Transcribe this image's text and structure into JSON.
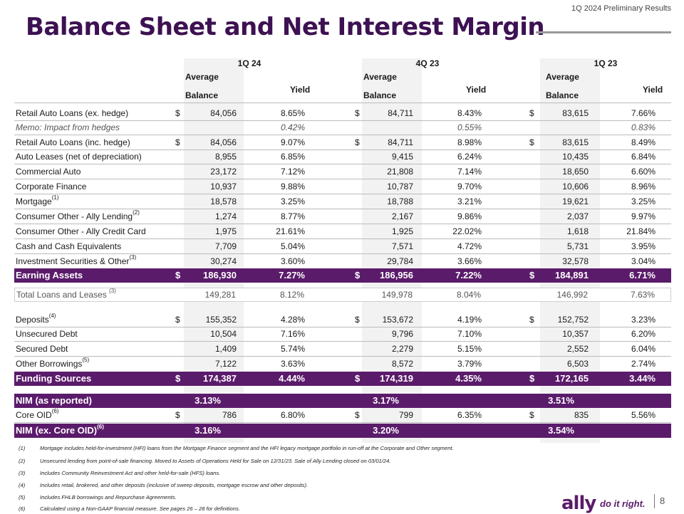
{
  "header": {
    "period": "1Q 2024 Preliminary Results",
    "title": "Balance Sheet and Net Interest Margin"
  },
  "periods": [
    {
      "label": "1Q 24",
      "avg": "Average",
      "bal": "Balance",
      "yield": "Yield"
    },
    {
      "label": "4Q 23",
      "avg": "Average",
      "bal": "Balance",
      "yield": "Yield"
    },
    {
      "label": "1Q 23",
      "avg": "Average",
      "bal": "Balance",
      "yield": "Yield"
    }
  ],
  "rows": [
    {
      "label": "Retail Auto Loans (ex. hedge)",
      "c": [
        [
          "$",
          "84,056",
          "8.65%"
        ],
        [
          "$",
          "84,711",
          "8.43%"
        ],
        [
          "$",
          "83,615",
          "7.66%"
        ]
      ]
    },
    {
      "label": "Memo: Impact from hedges",
      "c": [
        [
          "",
          "",
          "0.42%"
        ],
        [
          "",
          "",
          "0.55%"
        ],
        [
          "",
          "",
          "0.83%"
        ]
      ]
    },
    {
      "label": "Retail Auto Loans (inc. hedge)",
      "c": [
        [
          "$",
          "84,056",
          "9.07%"
        ],
        [
          "$",
          "84,711",
          "8.98%"
        ],
        [
          "$",
          "83,615",
          "8.49%"
        ]
      ]
    },
    {
      "label": "Auto Leases (net of depreciation)",
      "c": [
        [
          "",
          "8,955",
          "6.85%"
        ],
        [
          "",
          "9,415",
          "6.24%"
        ],
        [
          "",
          "10,435",
          "6.84%"
        ]
      ]
    },
    {
      "label": "Commercial Auto",
      "c": [
        [
          "",
          "23,172",
          "7.12%"
        ],
        [
          "",
          "21,808",
          "7.14%"
        ],
        [
          "",
          "18,650",
          "6.60%"
        ]
      ]
    },
    {
      "label": "Corporate Finance",
      "c": [
        [
          "",
          "10,937",
          "9.88%"
        ],
        [
          "",
          "10,787",
          "9.70%"
        ],
        [
          "",
          "10,606",
          "8.96%"
        ]
      ]
    },
    {
      "label": "Mortgage",
      "sup": "(1)",
      "c": [
        [
          "",
          "18,578",
          "3.25%"
        ],
        [
          "",
          "18,788",
          "3.21%"
        ],
        [
          "",
          "19,621",
          "3.25%"
        ]
      ]
    },
    {
      "label": "Consumer Other - Ally Lending",
      "sup": "(2)",
      "c": [
        [
          "",
          "1,274",
          "8.77%"
        ],
        [
          "",
          "2,167",
          "9.86%"
        ],
        [
          "",
          "2,037",
          "9.97%"
        ]
      ]
    },
    {
      "label": "Consumer Other - Ally Credit Card",
      "c": [
        [
          "",
          "1,975",
          "21.61%"
        ],
        [
          "",
          "1,925",
          "22.02%"
        ],
        [
          "",
          "1,618",
          "21.84%"
        ]
      ]
    },
    {
      "label": "Cash and Cash Equivalents",
      "c": [
        [
          "",
          "7,709",
          "5.04%"
        ],
        [
          "",
          "7,571",
          "4.72%"
        ],
        [
          "",
          "5,731",
          "3.95%"
        ]
      ]
    },
    {
      "label": "Investment Securities & Other",
      "sup": "(3)",
      "c": [
        [
          "",
          "30,274",
          "3.60%"
        ],
        [
          "",
          "29,784",
          "3.66%"
        ],
        [
          "",
          "32,578",
          "3.04%"
        ]
      ]
    },
    {
      "label": "Earning Assets",
      "c": [
        [
          "$",
          "186,930",
          "7.27%"
        ],
        [
          "$",
          "186,956",
          "7.22%"
        ],
        [
          "$",
          "184,891",
          "6.71%"
        ]
      ]
    },
    {
      "label": "Total Loans and Leases ",
      "sup": "(3)",
      "c": [
        [
          "",
          "149,281",
          "8.12%"
        ],
        [
          "",
          "149,978",
          "8.04%"
        ],
        [
          "",
          "146,992",
          "7.63%"
        ]
      ]
    },
    {
      "label": "Deposits",
      "sup": "(4)",
      "c": [
        [
          "$",
          "155,352",
          "4.28%"
        ],
        [
          "$",
          "153,672",
          "4.19%"
        ],
        [
          "$",
          "152,752",
          "3.23%"
        ]
      ]
    },
    {
      "label": "Unsecured Debt",
      "c": [
        [
          "",
          "10,504",
          "7.16%"
        ],
        [
          "",
          "9,796",
          "7.10%"
        ],
        [
          "",
          "10,357",
          "6.20%"
        ]
      ]
    },
    {
      "label": "Secured Debt",
      "c": [
        [
          "",
          "1,409",
          "5.74%"
        ],
        [
          "",
          "2,279",
          "5.15%"
        ],
        [
          "",
          "2,552",
          "6.04%"
        ]
      ]
    },
    {
      "label": "Other Borrowings",
      "sup": "(5)",
      "c": [
        [
          "",
          "7,122",
          "3.63%"
        ],
        [
          "",
          "8,572",
          "3.79%"
        ],
        [
          "",
          "6,503",
          "2.74%"
        ]
      ]
    },
    {
      "label": "Funding Sources",
      "c": [
        [
          "$",
          "174,387",
          "4.44%"
        ],
        [
          "$",
          "174,319",
          "4.35%"
        ],
        [
          "$",
          "172,165",
          "3.44%"
        ]
      ]
    },
    {
      "label": "NIM (as reported)",
      "c": [
        [
          "",
          "",
          "3.13%"
        ],
        [
          "",
          "",
          "3.17%"
        ],
        [
          "",
          "",
          "3.51%"
        ]
      ]
    },
    {
      "label": "Core OID",
      "sup": "(6)",
      "c": [
        [
          "$",
          "786",
          "6.80%"
        ],
        [
          "$",
          "799",
          "6.35%"
        ],
        [
          "$",
          "835",
          "5.56%"
        ]
      ]
    },
    {
      "label": "NIM (ex. Core OID)",
      "sup": "(6)",
      "c": [
        [
          "",
          "",
          "3.16%"
        ],
        [
          "",
          "",
          "3.20%"
        ],
        [
          "",
          "",
          "3.54%"
        ]
      ]
    }
  ],
  "footnotes": [
    {
      "n": "(1)",
      "t": "Mortgage includes held-for-investment (HFI) loans from the Mortgage Finance segment and the HFI legacy mortgage portfolio in run-off at the Corporate and Other segment."
    },
    {
      "n": "(2)",
      "t": "Unsecured lending from point-of-sale financing. Moved to Assets of Operations Held for Sale on 12/31/23. Sale of Ally Lending closed on 03/01/24."
    },
    {
      "n": "(3)",
      "t": "Includes Community Reinvestment Act and other held-for-sale (HFS) loans."
    },
    {
      "n": "(4)",
      "t": "Includes retail, brokered, and other deposits (inclusive of sweep deposits, mortgage escrow and other deposits)."
    },
    {
      "n": "(5)",
      "t": "Includes FHLB borrowings and Repurchase Agreements."
    },
    {
      "n": "(6)",
      "t": "Calculated using a Non-GAAP financial measure. See pages 26 – 28   for definitions."
    }
  ],
  "brand": {
    "logo": "ally",
    "tagline": "do it right.",
    "page": "8"
  },
  "colors": {
    "brand_purple": "#5b1b6b",
    "title_purple": "#3d1152"
  }
}
